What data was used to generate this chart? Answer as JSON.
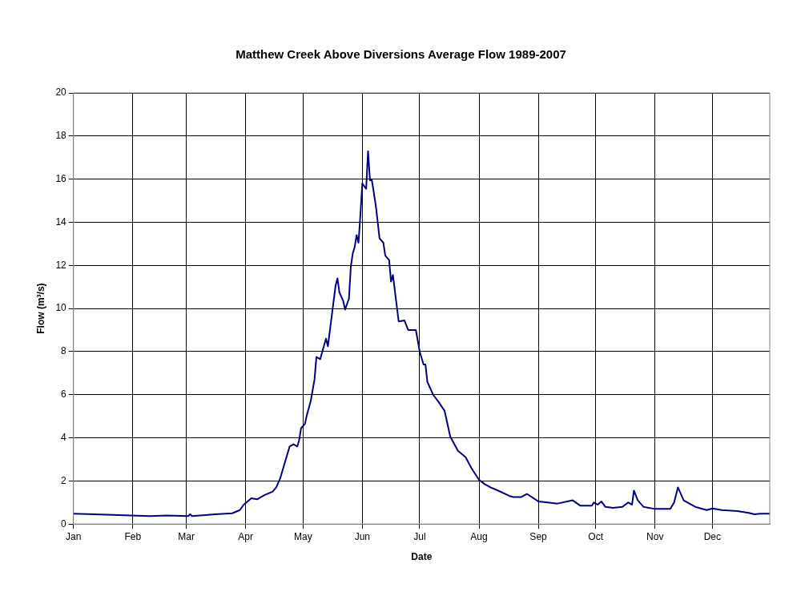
{
  "chart_data": {
    "type": "line",
    "title": "Matthew Creek Above Diversions Average Flow 1989-2007",
    "xlabel": "Date",
    "ylabel": "Flow (m³/s)",
    "x": [
      "--01-01",
      "--01-12",
      "--01-31",
      "--02-10",
      "--02-19",
      "--03-02",
      "--03-03",
      "--03-04",
      "--03-16",
      "--03-25",
      "--03-29",
      "--03-31",
      "--04-02",
      "--04-04",
      "--04-07",
      "--04-11",
      "--04-15",
      "--04-17",
      "--04-19",
      "--04-21",
      "--04-23",
      "--04-24",
      "--04-26",
      "--04-28",
      "--04-29",
      "--04-30",
      "--05-02",
      "--05-03",
      "--05-05",
      "--05-07",
      "--05-08",
      "--05-10",
      "--05-13",
      "--05-14",
      "--05-16",
      "--05-18",
      "--05-19",
      "--05-20",
      "--05-22",
      "--05-23",
      "--05-25",
      "--05-26",
      "--05-27",
      "--05-28",
      "--05-29",
      "--05-30",
      "--05-31",
      "--06-01",
      "--06-03",
      "--06-04",
      "--06-05",
      "--06-06",
      "--06-08",
      "--06-09",
      "--06-10",
      "--06-12",
      "--06-13",
      "--06-15",
      "--06-16",
      "--06-17",
      "--06-20",
      "--06-23",
      "--06-25",
      "--06-29",
      "--07-01",
      "--07-03",
      "--07-04",
      "--07-05",
      "--07-08",
      "--07-11",
      "--07-14",
      "--07-17",
      "--07-21",
      "--07-25",
      "--07-28",
      "--08-01",
      "--08-04",
      "--08-07",
      "--08-11",
      "--08-17",
      "--08-19",
      "--08-23",
      "--08-26",
      "--09-01",
      "--09-06",
      "--09-11",
      "--09-19",
      "--09-23",
      "--09-29",
      "--09-30",
      "--10-02",
      "--10-04",
      "--10-06",
      "--10-10",
      "--10-15",
      "--10-18",
      "--10-20",
      "--10-21",
      "--10-23",
      "--10-26",
      "--11-01",
      "--11-09",
      "--11-11",
      "--11-13",
      "--11-16",
      "--11-22",
      "--11-28",
      "--12-01",
      "--12-06",
      "--12-14",
      "--12-20",
      "--12-23",
      "--12-26",
      "--12-31"
    ],
    "series": [
      {
        "color": "#000080",
        "values": [
          0.48,
          0.45,
          0.4,
          0.37,
          0.4,
          0.37,
          0.45,
          0.37,
          0.45,
          0.5,
          0.65,
          0.9,
          1.05,
          1.2,
          1.15,
          1.35,
          1.5,
          1.7,
          2.1,
          2.7,
          3.3,
          3.6,
          3.7,
          3.6,
          3.9,
          4.45,
          4.65,
          5.05,
          5.7,
          6.7,
          7.75,
          7.65,
          8.6,
          8.25,
          9.65,
          11.05,
          11.4,
          10.75,
          10.35,
          9.95,
          10.45,
          11.95,
          12.55,
          12.85,
          13.4,
          13.05,
          14.35,
          15.8,
          15.55,
          17.3,
          15.95,
          15.95,
          14.8,
          14.05,
          13.25,
          13.05,
          12.45,
          12.25,
          11.25,
          11.55,
          9.4,
          9.45,
          9.0,
          9.0,
          8.0,
          7.4,
          7.4,
          6.6,
          6.0,
          5.65,
          5.25,
          4.05,
          3.4,
          3.1,
          2.6,
          2.05,
          1.85,
          1.7,
          1.55,
          1.3,
          1.25,
          1.25,
          1.4,
          1.05,
          1.0,
          0.95,
          1.1,
          0.85,
          0.85,
          1.0,
          0.9,
          1.05,
          0.8,
          0.75,
          0.8,
          1.0,
          0.9,
          1.55,
          1.1,
          0.8,
          0.7,
          0.7,
          1.0,
          1.7,
          1.1,
          0.8,
          0.65,
          0.72,
          0.65,
          0.6,
          0.52,
          0.45,
          0.48,
          0.48
        ]
      }
    ],
    "xlim": [
      "--01-01",
      "--12-31"
    ],
    "xticks": [
      {
        "value": "--01-01",
        "label": "Jan"
      },
      {
        "value": "--02-01",
        "label": "Feb"
      },
      {
        "value": "--03-01",
        "label": "Mar"
      },
      {
        "value": "--04-01",
        "label": "Apr"
      },
      {
        "value": "--05-01",
        "label": "May"
      },
      {
        "value": "--06-01",
        "label": "Jun"
      },
      {
        "value": "--07-01",
        "label": "Jul"
      },
      {
        "value": "--08-01",
        "label": "Aug"
      },
      {
        "value": "--09-01",
        "label": "Sep"
      },
      {
        "value": "--10-01",
        "label": "Oct"
      },
      {
        "value": "--11-01",
        "label": "Nov"
      },
      {
        "value": "--12-01",
        "label": "Dec"
      }
    ],
    "ylim": [
      0,
      20
    ],
    "yticks": [
      0,
      2,
      4,
      6,
      8,
      10,
      12,
      14,
      16,
      18,
      20
    ],
    "grid": true,
    "legend": false,
    "marker": "none",
    "line_style": "solid"
  }
}
